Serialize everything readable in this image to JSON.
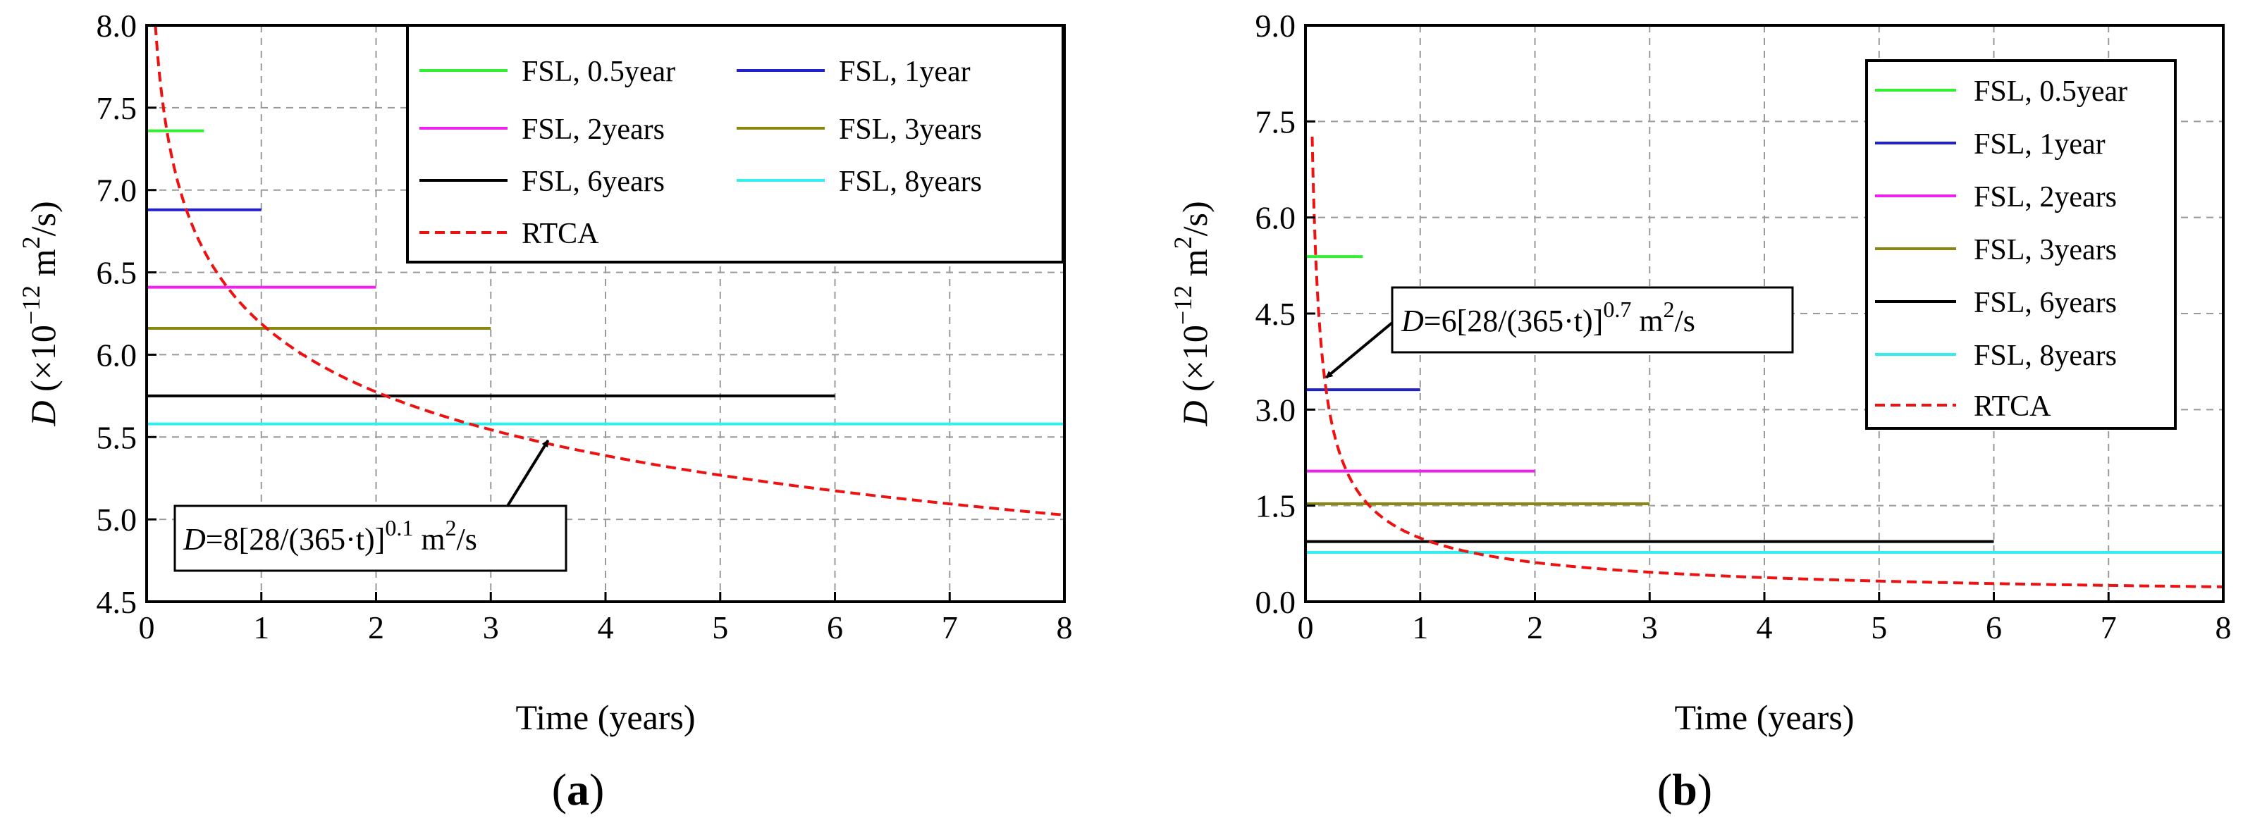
{
  "chart_data": [
    {
      "type": "line",
      "panel_label": "(a)",
      "panel_letter": "a",
      "xlabel": "Time (years)",
      "ylabel": "D (×10−12 m2/s)",
      "ylabel_parts": {
        "var": "D",
        "pre": " (×10",
        "exp": "−12",
        "mid": " m",
        "exp2": "2",
        "post": "/s)"
      },
      "xlim": [
        0,
        8
      ],
      "ylim": [
        4.5,
        8.0
      ],
      "xticks": [
        0,
        1,
        2,
        3,
        4,
        5,
        6,
        7,
        8
      ],
      "xtick_labels": [
        "0",
        "1",
        "2",
        "3",
        "4",
        "5",
        "6",
        "7",
        "8"
      ],
      "yticks": [
        4.5,
        5.0,
        5.5,
        6.0,
        6.5,
        7.0,
        7.5,
        8.0
      ],
      "ytick_labels": [
        "4.5",
        "5.0",
        "5.5",
        "6.0",
        "6.5",
        "7.0",
        "7.5",
        "8.0"
      ],
      "grid": true,
      "legend_position": "top-right",
      "legend_columns": 2,
      "series": [
        {
          "name": "FSL, 0.5year",
          "color": "#33ee33",
          "style": "solid",
          "x": [
            0,
            0.5
          ],
          "y": [
            7.36,
            7.36
          ]
        },
        {
          "name": "FSL, 1year",
          "color": "#2222cc",
          "style": "solid",
          "x": [
            0,
            1
          ],
          "y": [
            6.88,
            6.88
          ]
        },
        {
          "name": "FSL, 2years",
          "color": "#ee22ee",
          "style": "solid",
          "x": [
            0,
            2
          ],
          "y": [
            6.41,
            6.41
          ]
        },
        {
          "name": "FSL, 3years",
          "color": "#888811",
          "style": "solid",
          "x": [
            0,
            3
          ],
          "y": [
            6.16,
            6.16
          ]
        },
        {
          "name": "FSL, 6years",
          "color": "#000000",
          "style": "solid",
          "x": [
            0,
            6
          ],
          "y": [
            5.75,
            5.75
          ]
        },
        {
          "name": "FSL, 8years",
          "color": "#33eeee",
          "style": "solid",
          "x": [
            0,
            8
          ],
          "y": [
            5.58,
            5.58
          ]
        },
        {
          "name": "RTCA",
          "color": "#ee1111",
          "style": "dashed",
          "formula": {
            "coef": 8,
            "exp": 0.1
          },
          "x_range": [
            0.0767,
            8
          ]
        }
      ],
      "annotation": {
        "text": "D=8[28/(365·t)]0.1 m2/s",
        "parts": {
          "var": "D",
          "a": "=8[28/(365·t)]",
          "exp": "0.1",
          "b": " m",
          "exp2": "2",
          "c": "/s"
        },
        "arrow_target": [
          3.5,
          5.48
        ]
      }
    },
    {
      "type": "line",
      "panel_label": "(b)",
      "panel_letter": "b",
      "xlabel": "Time (years)",
      "ylabel": "D (×10−12 m2/s)",
      "ylabel_parts": {
        "var": "D",
        "pre": " (×10",
        "exp": "−12",
        "mid": " m",
        "exp2": "2",
        "post": "/s)"
      },
      "xlim": [
        0,
        8
      ],
      "ylim": [
        0.0,
        9.0
      ],
      "xticks": [
        0,
        1,
        2,
        3,
        4,
        5,
        6,
        7,
        8
      ],
      "xtick_labels": [
        "0",
        "1",
        "2",
        "3",
        "4",
        "5",
        "6",
        "7",
        "8"
      ],
      "yticks": [
        0.0,
        1.5,
        3.0,
        4.5,
        6.0,
        7.5,
        9.0
      ],
      "ytick_labels": [
        "0.0",
        "1.5",
        "3.0",
        "4.5",
        "6.0",
        "7.5",
        "9.0"
      ],
      "grid": true,
      "legend_position": "top-right",
      "legend_columns": 1,
      "series": [
        {
          "name": "FSL, 0.5year",
          "color": "#33ee33",
          "style": "solid",
          "x": [
            0,
            0.5
          ],
          "y": [
            5.39,
            5.39
          ]
        },
        {
          "name": "FSL, 1year",
          "color": "#2222cc",
          "style": "solid",
          "x": [
            0,
            1
          ],
          "y": [
            3.31,
            3.31
          ]
        },
        {
          "name": "FSL, 2years",
          "color": "#ee22ee",
          "style": "solid",
          "x": [
            0,
            2
          ],
          "y": [
            2.04,
            2.04
          ]
        },
        {
          "name": "FSL, 3years",
          "color": "#888811",
          "style": "solid",
          "x": [
            0,
            3
          ],
          "y": [
            1.53,
            1.53
          ]
        },
        {
          "name": "FSL, 6years",
          "color": "#000000",
          "style": "solid",
          "x": [
            0,
            6
          ],
          "y": [
            0.94,
            0.94
          ]
        },
        {
          "name": "FSL, 8years",
          "color": "#33eeee",
          "style": "solid",
          "x": [
            0,
            8
          ],
          "y": [
            0.77,
            0.77
          ]
        },
        {
          "name": "RTCA",
          "color": "#ee1111",
          "style": "dashed",
          "formula": {
            "coef": 6,
            "exp": 0.7
          },
          "x_range": [
            0.0584,
            8
          ]
        }
      ],
      "annotation": {
        "text": "D=6[28/(365·t)]0.7 m2/s",
        "parts": {
          "var": "D",
          "a": "=6[28/(365·t)]",
          "exp": "0.7",
          "b": " m",
          "exp2": "2",
          "c": "/s"
        },
        "arrow_target": [
          0.18,
          3.5
        ]
      }
    }
  ]
}
